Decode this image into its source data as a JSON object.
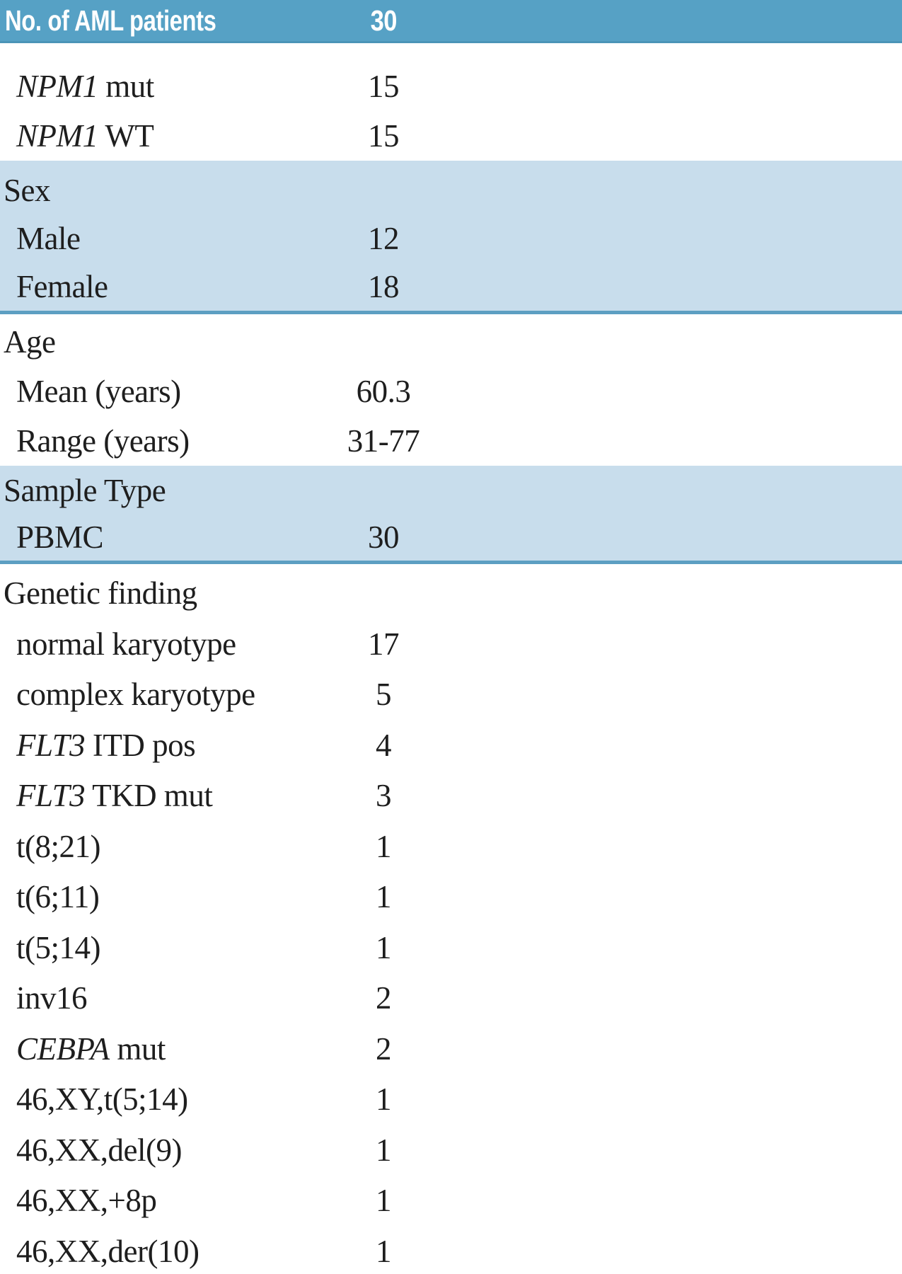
{
  "title": "AML patient characteristics table",
  "colors": {
    "header_bg": "#56a1c5",
    "header_text": "#ffffff",
    "shaded_section_bg": "#c8ddec",
    "section_rule": "#5d9fc2",
    "body_text": "#1e1e1e"
  },
  "table": {
    "header": {
      "label": "No. of AML patients",
      "value": "30"
    },
    "sections": [
      {
        "id": "npm",
        "shaded": false,
        "header": null,
        "rows": [
          {
            "label": [
              {
                "text": "NPM1",
                "italic": true
              },
              {
                "text": " mut",
                "italic": false
              }
            ],
            "value": "15"
          },
          {
            "label": [
              {
                "text": "NPM1",
                "italic": true
              },
              {
                "text": " WT",
                "italic": false
              }
            ],
            "value": "15"
          }
        ]
      },
      {
        "id": "sex",
        "shaded": true,
        "header": "Sex",
        "rows": [
          {
            "label": [
              {
                "text": "Male",
                "italic": false
              }
            ],
            "value": "12"
          },
          {
            "label": [
              {
                "text": "Female",
                "italic": false
              }
            ],
            "value": "18"
          }
        ]
      },
      {
        "id": "age",
        "shaded": false,
        "header": "Age",
        "rows": [
          {
            "label": [
              {
                "text": "Mean (years)",
                "italic": false
              }
            ],
            "value": "60.3"
          },
          {
            "label": [
              {
                "text": "Range (years)",
                "italic": false
              }
            ],
            "value": "31-77"
          }
        ]
      },
      {
        "id": "sample",
        "shaded": true,
        "header": "Sample Type",
        "rows": [
          {
            "label": [
              {
                "text": "PBMC",
                "italic": false
              }
            ],
            "value": "30"
          }
        ]
      },
      {
        "id": "genetic",
        "shaded": false,
        "header": "Genetic finding",
        "rows": [
          {
            "label": [
              {
                "text": "normal karyotype",
                "italic": false
              }
            ],
            "value": "17"
          },
          {
            "label": [
              {
                "text": "complex karyotype",
                "italic": false
              }
            ],
            "value": "5"
          },
          {
            "label": [
              {
                "text": "FLT3",
                "italic": true
              },
              {
                "text": " ITD pos",
                "italic": false
              }
            ],
            "value": "4"
          },
          {
            "label": [
              {
                "text": "FLT3",
                "italic": true
              },
              {
                "text": " TKD mut",
                "italic": false
              }
            ],
            "value": "3"
          },
          {
            "label": [
              {
                "text": "t(8;21)",
                "italic": false
              }
            ],
            "value": "1"
          },
          {
            "label": [
              {
                "text": "t(6;11)",
                "italic": false
              }
            ],
            "value": "1"
          },
          {
            "label": [
              {
                "text": "t(5;14)",
                "italic": false
              }
            ],
            "value": "1"
          },
          {
            "label": [
              {
                "text": "inv16",
                "italic": false
              }
            ],
            "value": "2"
          },
          {
            "label": [
              {
                "text": "CEBPA",
                "italic": true
              },
              {
                "text": " mut",
                "italic": false
              }
            ],
            "value": "2"
          },
          {
            "label": [
              {
                "text": "46,XY,t(5;14)",
                "italic": false
              }
            ],
            "value": "1"
          },
          {
            "label": [
              {
                "text": "46,XX,del(9)",
                "italic": false
              }
            ],
            "value": "1"
          },
          {
            "label": [
              {
                "text": "46,XX,+8p",
                "italic": false
              }
            ],
            "value": "1"
          },
          {
            "label": [
              {
                "text": "46,XX,der(10)",
                "italic": false
              }
            ],
            "value": "1"
          }
        ]
      }
    ]
  }
}
